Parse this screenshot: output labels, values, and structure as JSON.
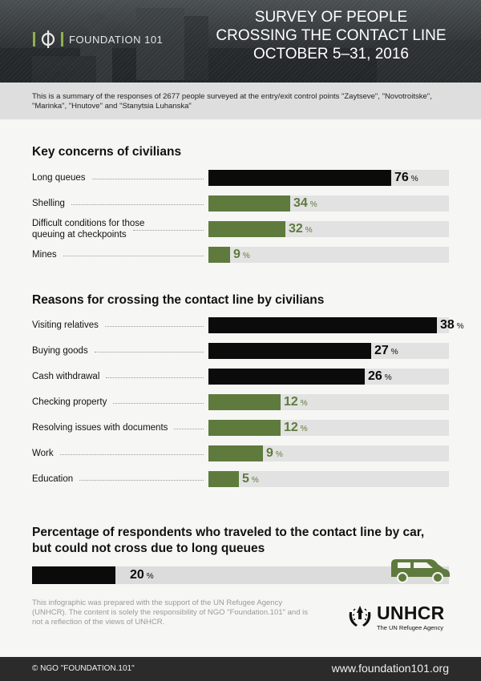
{
  "header": {
    "logo_text": "FOUNDATION 101",
    "title_lines": [
      "SURVEY OF PEOPLE",
      "CROSSING THE CONTACT LINE",
      "OCTOBER 5–31, 2016"
    ]
  },
  "intro": {
    "text": "This is a summary of the responses of 2677 people surveyed at the entry/exit control points \"Zaytseve\", \"Novotroitske\", \"Marinka\", \"Hnutove\" and \"Stanytsia Luhanska\""
  },
  "colors": {
    "black": "#0b0b0b",
    "green": "#5f7a3d",
    "track": "#e2e2e2"
  },
  "chart_data": [
    {
      "type": "bar",
      "title": "Key concerns of civilians",
      "xlim": [
        0,
        100
      ],
      "unit": "%",
      "categories": [
        "Long queues",
        "Shelling",
        "Difficult conditions for those queuing at checkpoints",
        "Mines"
      ],
      "values": [
        76,
        34,
        32,
        9
      ],
      "bar_colors": [
        "black",
        "green",
        "green",
        "green"
      ]
    },
    {
      "type": "bar",
      "title": "Reasons for crossing the contact line by civilians",
      "xlim": [
        0,
        40
      ],
      "unit": "%",
      "categories": [
        "Visiting relatives",
        "Buying goods",
        "Cash withdrawal",
        "Checking property",
        "Resolving issues with documents",
        "Work",
        "Education"
      ],
      "values": [
        38,
        27,
        26,
        12,
        12,
        9,
        5
      ],
      "bar_colors": [
        "black",
        "black",
        "black",
        "green",
        "green",
        "green",
        "green"
      ]
    },
    {
      "type": "bar",
      "title": "Percentage of respondents who traveled to the contact line by car, but could not cross due to long queues",
      "xlim": [
        0,
        100
      ],
      "unit": "%",
      "categories": [
        ""
      ],
      "values": [
        20
      ],
      "bar_colors": [
        "black"
      ]
    }
  ],
  "footer": {
    "note": "This infographic was prepared with the support of the UN Refugee Agency (UNHCR). The content is solely the responsibility of NGO \"Foundation.101\" and is not a reflection of the views of UNHCR.",
    "unhcr_name": "UNHCR",
    "unhcr_sub": "The UN Refugee Agency",
    "copyright": "© NGO \"FOUNDATION.101\"",
    "website": "www.foundation101.org"
  },
  "icons": {
    "logo": "foundation-logo-icon",
    "car": "car-icon",
    "unhcr": "unhcr-emblem-icon"
  }
}
